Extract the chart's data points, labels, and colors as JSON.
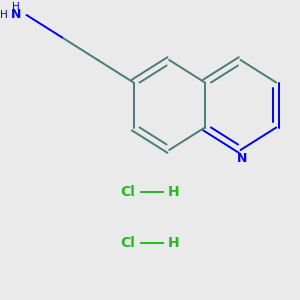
{
  "background_color": "#eaeaea",
  "bond_color": "#4a7a7a",
  "nitrogen_color": "#0000ee",
  "hcl_color": "#22bb22",
  "nh2_color": "#0000ee",
  "fig_width": 3.0,
  "fig_height": 3.0,
  "dpi": 100,
  "xlim": [
    0,
    10
  ],
  "ylim": [
    0,
    10
  ]
}
